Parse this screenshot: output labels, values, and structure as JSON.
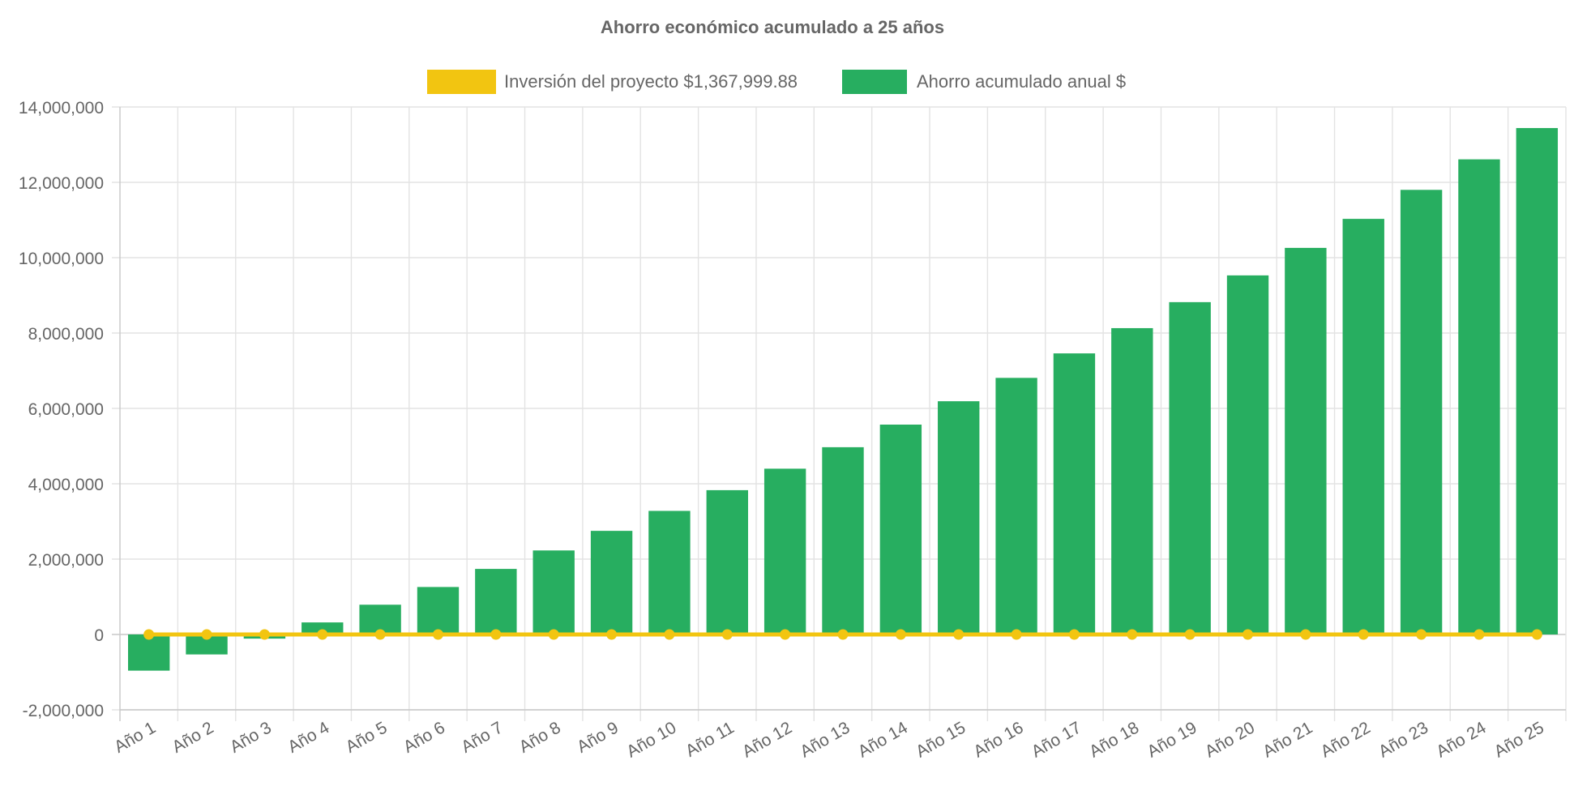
{
  "chart_data": {
    "type": "bar",
    "title": "Ahorro económico acumulado a 25 años",
    "categories": [
      "Año 1",
      "Año 2",
      "Año 3",
      "Año 4",
      "Año 5",
      "Año 6",
      "Año 7",
      "Año 8",
      "Año 9",
      "Año 10",
      "Año 11",
      "Año 12",
      "Año 13",
      "Año 14",
      "Año 15",
      "Año 16",
      "Año 17",
      "Año 18",
      "Año 19",
      "Año 20",
      "Año 21",
      "Año 22",
      "Año 23",
      "Año 24",
      "Año 25"
    ],
    "series": [
      {
        "name": "Inversión del proyecto $1,367,999.88",
        "type": "line",
        "color": "#f2c511",
        "values": [
          0,
          0,
          0,
          0,
          0,
          0,
          0,
          0,
          0,
          0,
          0,
          0,
          0,
          0,
          0,
          0,
          0,
          0,
          0,
          0,
          0,
          0,
          0,
          0,
          0
        ]
      },
      {
        "name": "Ahorro acumulado anual $",
        "type": "bar",
        "color": "#27ae60",
        "values": [
          -960000,
          -530000,
          -110000,
          320000,
          790000,
          1260000,
          1740000,
          2230000,
          2750000,
          3280000,
          3830000,
          4400000,
          4970000,
          5570000,
          6190000,
          6810000,
          7460000,
          8130000,
          8820000,
          9530000,
          10260000,
          11030000,
          11800000,
          12610000,
          13440000
        ]
      }
    ],
    "ylim": [
      -2000000,
      14000000
    ],
    "yticks": [
      "14,000,000",
      "12,000,000",
      "10,000,000",
      "8,000,000",
      "6,000,000",
      "4,000,000",
      "2,000,000",
      "0",
      "-2,000,000"
    ],
    "ytick_values": [
      14000000,
      12000000,
      10000000,
      8000000,
      6000000,
      4000000,
      2000000,
      0,
      -2000000
    ],
    "grid": true,
    "legend_position": "top"
  }
}
